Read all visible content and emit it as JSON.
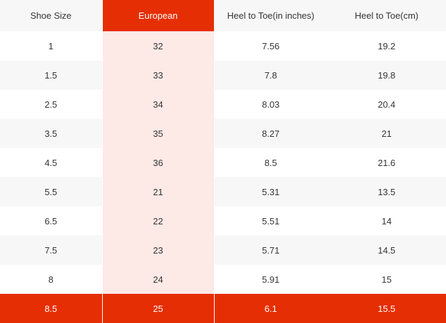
{
  "colors": {
    "accent": "#e62e04",
    "accent_light": "#fde9e6",
    "stripe": "#f7f7f7"
  },
  "table": {
    "headers": [
      "Shoe Size",
      "European",
      "Heel to Toe(in inches)",
      "Heel to Toe(cm)"
    ],
    "rows": [
      [
        "1",
        "32",
        "7.56",
        "19.2"
      ],
      [
        "1.5",
        "33",
        "7.8",
        "19.8"
      ],
      [
        "2.5",
        "34",
        "8.03",
        "20.4"
      ],
      [
        "3.5",
        "35",
        "8.27",
        "21"
      ],
      [
        "4.5",
        "36",
        "8.5",
        "21.6"
      ],
      [
        "5.5",
        "21",
        "5.31",
        "13.5"
      ],
      [
        "6.5",
        "22",
        "5.51",
        "14"
      ],
      [
        "7.5",
        "23",
        "5.71",
        "14.5"
      ],
      [
        "8",
        "24",
        "5.91",
        "15"
      ],
      [
        "8.5",
        "25",
        "6.1",
        "15.5"
      ]
    ]
  }
}
